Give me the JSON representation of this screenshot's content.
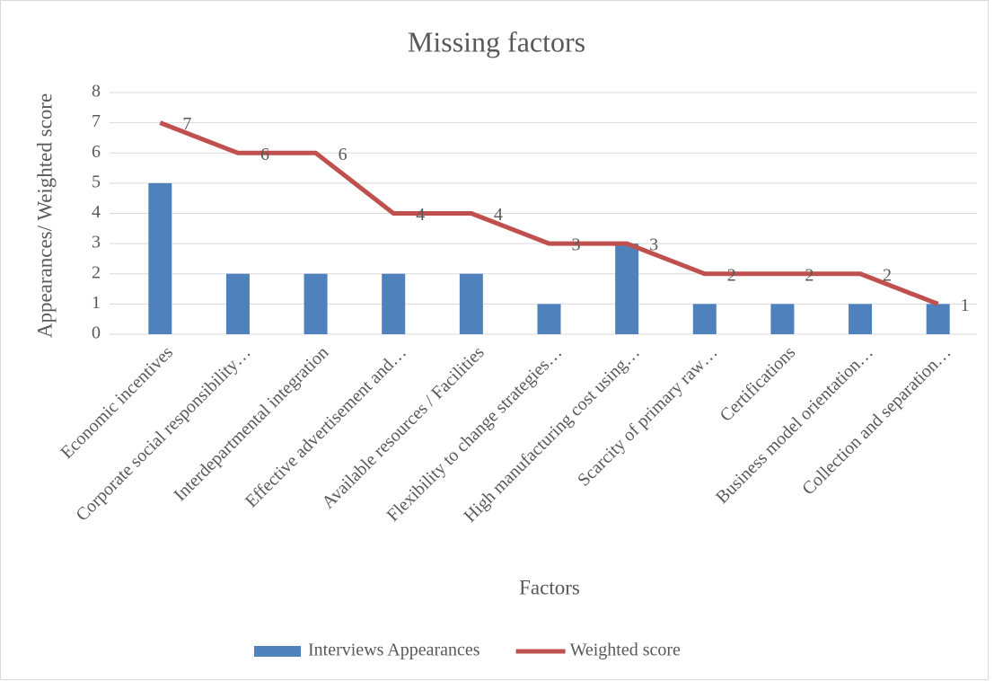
{
  "chart_data": {
    "type": "combo",
    "title": "Missing factors",
    "x_label": "Factors",
    "y_label": "Appearances/ Weighted score",
    "categories": [
      "Economic incentives",
      "Corporate social responsibility…",
      "Interdepartmental integration",
      "Effective advertisement and…",
      "Available resources / Facilities",
      "Flexibility to change strategies…",
      "High manufacturing cost using…",
      "Scarcity of primary raw…",
      "Certifications",
      "Business model orientation…",
      "Collection and separation…"
    ],
    "series": [
      {
        "name": "Interviews Appearances",
        "type": "bar",
        "color": "#4f81bd",
        "values": [
          5,
          2,
          2,
          2,
          2,
          1,
          3,
          1,
          1,
          1,
          1
        ]
      },
      {
        "name": "Weighted score",
        "type": "line",
        "color": "#c0504d",
        "values": [
          7,
          6,
          6,
          4,
          4,
          3,
          3,
          2,
          2,
          2,
          1
        ],
        "data_labels": true
      }
    ],
    "ylim": [
      0,
      8
    ],
    "yticks": [
      0,
      1,
      2,
      3,
      4,
      5,
      6,
      7,
      8
    ],
    "grid": true,
    "legend": "bottom"
  }
}
